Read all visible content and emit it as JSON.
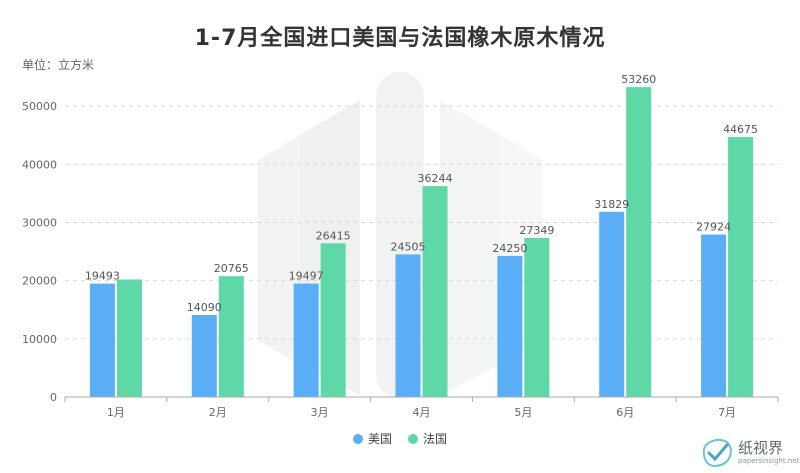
{
  "chart_data": {
    "type": "bar",
    "title": "1-7月全国进口美国与法国橡木原木情况",
    "unit": "单位：立方米",
    "categories": [
      "1月",
      "2月",
      "3月",
      "4月",
      "5月",
      "6月",
      "7月"
    ],
    "series": [
      {
        "name": "美国",
        "color": "#5aaef5",
        "values": [
          19493,
          14090,
          19497,
          24505,
          24250,
          31829,
          27924
        ],
        "labels": [
          "19493",
          "14090",
          "19497",
          "24505",
          "24250",
          "31829",
          "27924"
        ]
      },
      {
        "name": "法国",
        "color": "#5fd8a8",
        "values": [
          20200,
          20765,
          26415,
          36244,
          27349,
          53260,
          44675
        ],
        "labels": [
          "",
          "20765",
          "26415",
          "36244",
          "27349",
          "53260",
          "44675"
        ]
      }
    ],
    "ylim": [
      0,
      55000
    ],
    "yticks": [
      "0",
      "10000",
      "20000",
      "30000",
      "40000",
      "50000"
    ],
    "grid": true,
    "legend_position": "bottom-center"
  },
  "watermark": {
    "cn": "纸视界",
    "en": "papersinsight.net",
    "icon": "checkmark-leaf-icon"
  }
}
